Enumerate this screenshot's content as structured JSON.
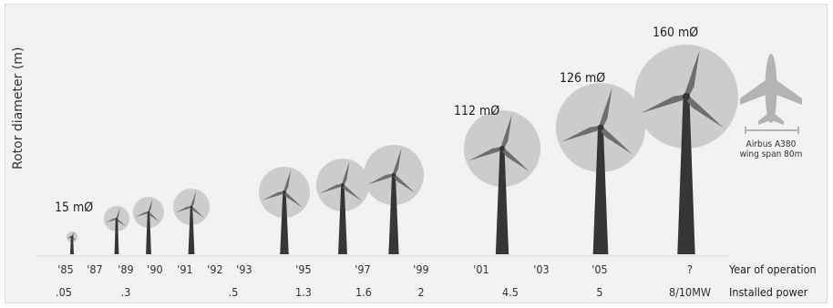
{
  "axis": {
    "ylabel": "Rotor diameter (m)"
  },
  "turbines": [
    {
      "diameter_m": 15,
      "label": "15 mØ"
    },
    {
      "diameter_m": null,
      "label": ""
    },
    {
      "diameter_m": null,
      "label": ""
    },
    {
      "diameter_m": null,
      "label": ""
    },
    {
      "diameter_m": null,
      "label": ""
    },
    {
      "diameter_m": null,
      "label": ""
    },
    {
      "diameter_m": null,
      "label": ""
    },
    {
      "diameter_m": 112,
      "label": "112 mØ"
    },
    {
      "diameter_m": 126,
      "label": "126 mØ"
    },
    {
      "diameter_m": 160,
      "label": "160 mØ"
    }
  ],
  "years": [
    "'85",
    "'87",
    "'89",
    "'90",
    "'91",
    "'92",
    "'93",
    "'95",
    "'97",
    "'99",
    "'01",
    "'03",
    "'05",
    "?"
  ],
  "powers": [
    ".05",
    ".3",
    ".5",
    "1.3",
    "1.6",
    "2",
    "4.5",
    "5",
    "8/10MW"
  ],
  "row_labels": {
    "year": "Year of operation",
    "power": "Installed power"
  },
  "comparison": {
    "name": "Airbus A380",
    "detail": "wing span 80m",
    "icon": "airplane-icon"
  },
  "colors": {
    "background": "#f1f1f1",
    "rotor_disc": "#cccccc",
    "blade": "#6e6e6e",
    "tower": "#363636",
    "plane": "#b3b3b3"
  }
}
